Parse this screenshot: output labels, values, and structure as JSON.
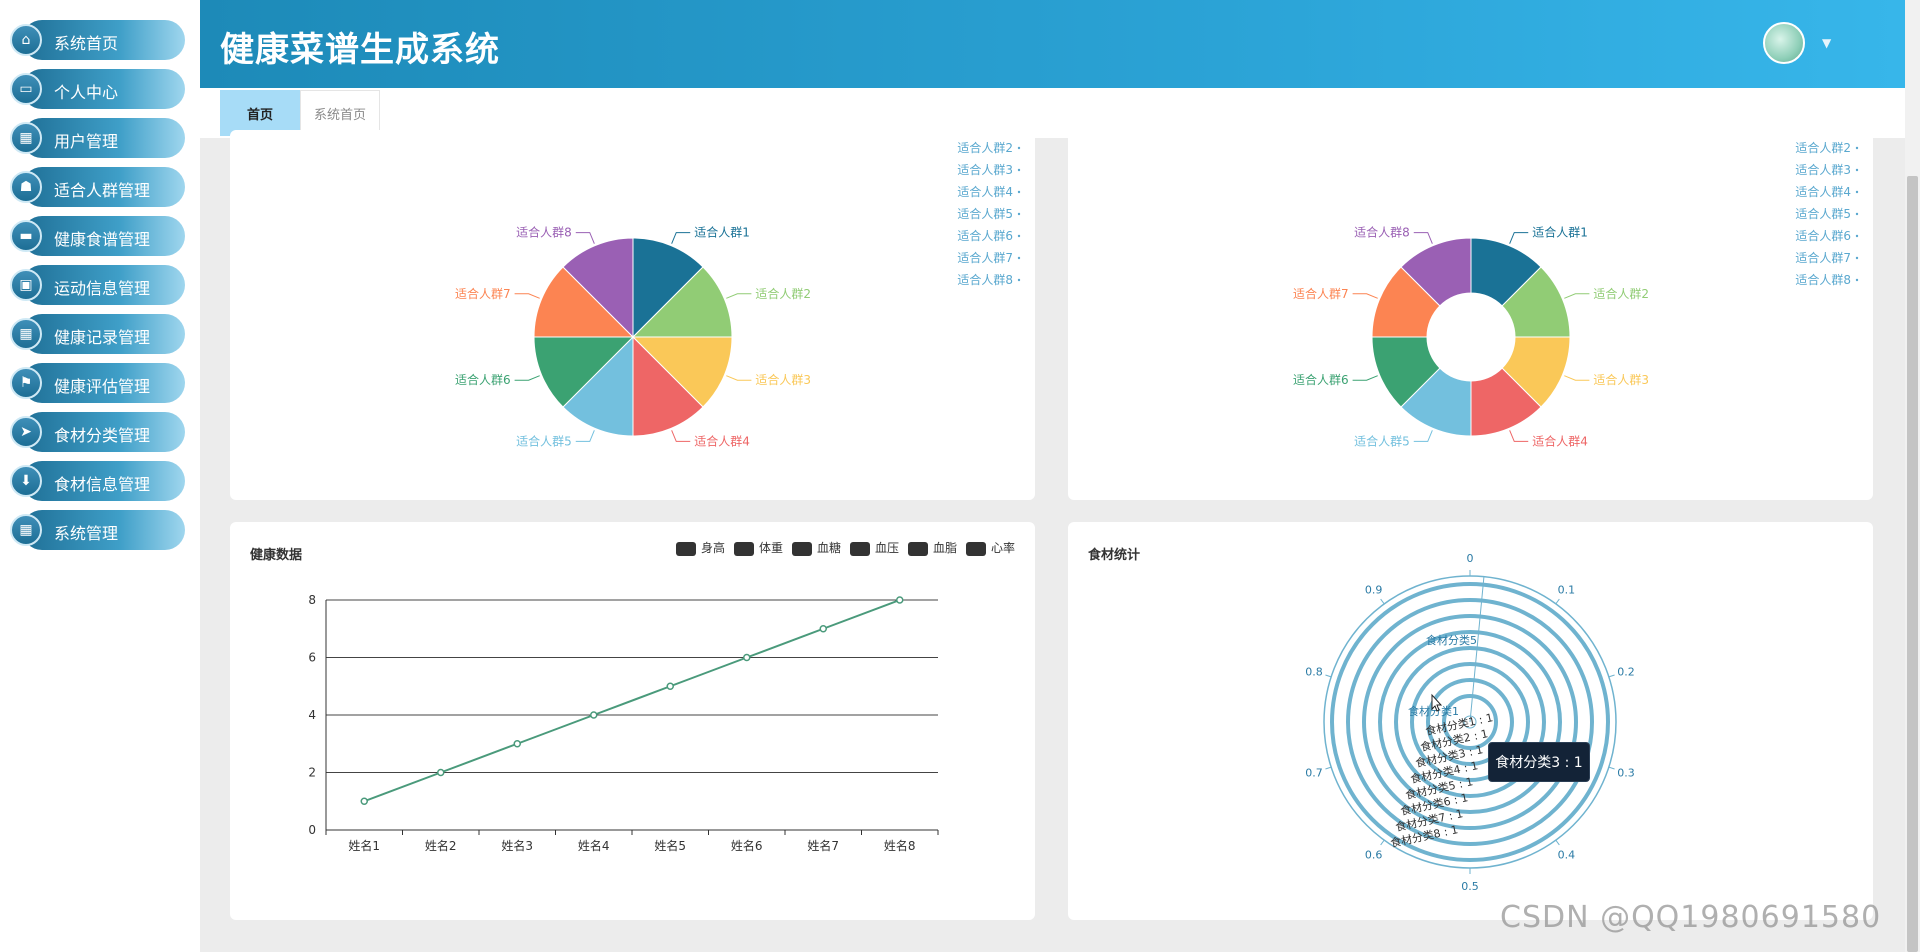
{
  "sidebar": {
    "items": [
      {
        "label": "系统首页",
        "icon": "home-icon",
        "glyph": "⌂"
      },
      {
        "label": "个人中心",
        "icon": "window-icon",
        "glyph": "▭"
      },
      {
        "label": "用户管理",
        "icon": "grid-icon",
        "glyph": "▦"
      },
      {
        "label": "适合人群管理",
        "icon": "user-group-icon",
        "glyph": "☗"
      },
      {
        "label": "健康食谱管理",
        "icon": "monitor-icon",
        "glyph": "▬"
      },
      {
        "label": "运动信息管理",
        "icon": "briefcase-icon",
        "glyph": "▣"
      },
      {
        "label": "健康记录管理",
        "icon": "grid-icon",
        "glyph": "▦"
      },
      {
        "label": "健康评估管理",
        "icon": "flag-icon",
        "glyph": "⚑"
      },
      {
        "label": "食材分类管理",
        "icon": "send-icon",
        "glyph": "➤"
      },
      {
        "label": "食材信息管理",
        "icon": "pin-icon",
        "glyph": "⬇"
      },
      {
        "label": "系统管理",
        "icon": "grid-icon",
        "glyph": "▦"
      }
    ]
  },
  "header": {
    "title": "健康菜谱生成系统"
  },
  "tabs": [
    {
      "label": "首页",
      "active": true
    },
    {
      "label": "系统首页",
      "active": false
    }
  ],
  "charts": {
    "pie1": {
      "type": "pie",
      "categories": [
        "适合人群1",
        "适合人群2",
        "适合人群3",
        "适合人群4",
        "适合人群5",
        "适合人群6",
        "适合人群7",
        "适合人群8"
      ],
      "values": [
        1,
        1,
        1,
        1,
        1,
        1,
        1,
        1
      ],
      "legend": [
        "适合人群2",
        "适合人群3",
        "适合人群4",
        "适合人群5",
        "适合人群6",
        "适合人群7",
        "适合人群8"
      ],
      "legend_position": "top-right",
      "colors": [
        "#1a7296",
        "#91cc75",
        "#fac858",
        "#ee6666",
        "#73c0de",
        "#3ba272",
        "#fc8452",
        "#9a60b4"
      ]
    },
    "pie2": {
      "type": "pie",
      "variant": "donut",
      "categories": [
        "适合人群1",
        "适合人群2",
        "适合人群3",
        "适合人群4",
        "适合人群5",
        "适合人群6",
        "适合人群7",
        "适合人群8"
      ],
      "values": [
        1,
        1,
        1,
        1,
        1,
        1,
        1,
        1
      ],
      "legend": [
        "适合人群2",
        "适合人群3",
        "适合人群4",
        "适合人群5",
        "适合人群6",
        "适合人群7",
        "适合人群8"
      ],
      "legend_position": "top-right",
      "colors": [
        "#1a7296",
        "#91cc75",
        "#fac858",
        "#ee6666",
        "#73c0de",
        "#3ba272",
        "#fc8452",
        "#9a60b4"
      ]
    },
    "line": {
      "type": "line",
      "title": "健康数据",
      "legend": [
        "身高",
        "体重",
        "血糖",
        "血压",
        "血脂",
        "心率"
      ],
      "legend_position": "top-right",
      "categories": [
        "姓名1",
        "姓名2",
        "姓名3",
        "姓名4",
        "姓名5",
        "姓名6",
        "姓名7",
        "姓名8"
      ],
      "series": [
        {
          "values": [
            1,
            2,
            3,
            4,
            5,
            6,
            7,
            8
          ]
        }
      ],
      "ylim": [
        0,
        8
      ],
      "yticks": [
        0,
        2,
        4,
        6,
        8
      ],
      "grid": true,
      "line_color": "#4a9a7b"
    },
    "polar": {
      "type": "bar",
      "variant": "polar",
      "title": "食材统计",
      "categories": [
        "食材分类1",
        "食材分类2",
        "食材分类3",
        "食材分类4",
        "食材分类5",
        "食材分类6",
        "食材分类7",
        "食材分类8"
      ],
      "values": [
        1,
        1,
        1,
        1,
        1,
        1,
        1,
        1
      ],
      "value_labels": [
        "食材分类1 : 1",
        "食材分类2 : 1",
        "食材分类3 : 1",
        "食材分类4 : 1",
        "食材分类5 : 1",
        "食材分类6 : 1",
        "食材分类7 : 1",
        "食材分类8 : 1"
      ],
      "angle_ticks": [
        "0",
        "0.1",
        "0.2",
        "0.3",
        "0.4",
        "0.5",
        "0.6",
        "0.7",
        "0.8",
        "0.9"
      ],
      "tooltip": "食材分类3 : 1",
      "color": "#6fb3cf"
    }
  },
  "watermark": "CSDN @QQ1980691580"
}
